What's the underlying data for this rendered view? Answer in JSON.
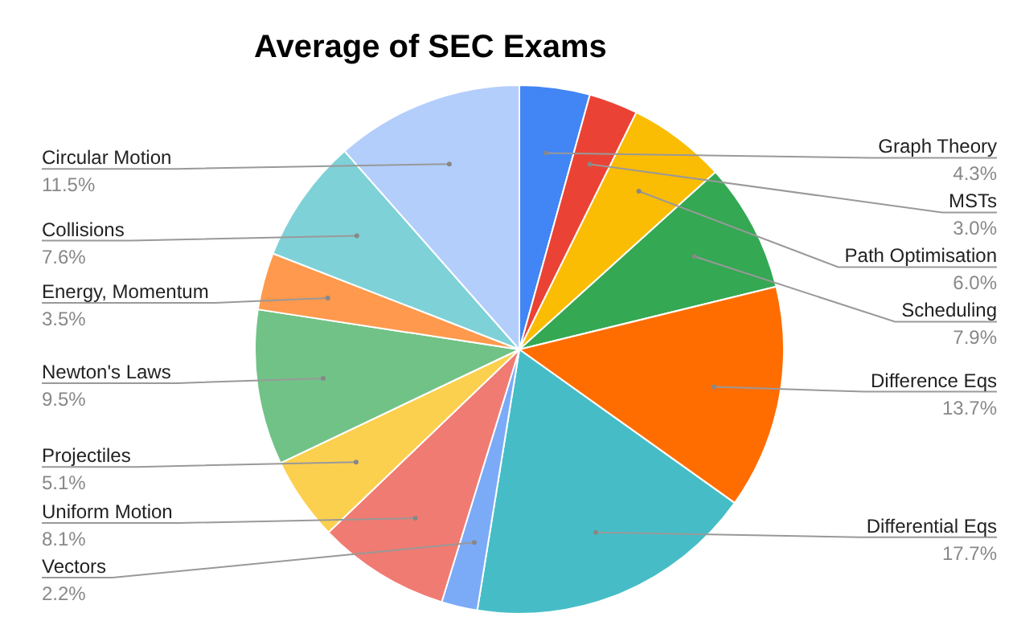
{
  "chart_data": {
    "type": "pie",
    "title": "Average of SEC Exams",
    "categories": [
      "Graph Theory",
      "MSTs",
      "Path Optimisation",
      "Scheduling",
      "Difference Eqs",
      "Differential Eqs",
      "Vectors",
      "Uniform Motion",
      "Projectiles",
      "Newton's Laws",
      "Energy, Momentum",
      "Collisions",
      "Circular Motion"
    ],
    "values": [
      4.3,
      3.0,
      6.0,
      7.9,
      13.7,
      17.7,
      2.2,
      8.1,
      5.1,
      9.5,
      3.5,
      7.6,
      11.5
    ],
    "value_labels": [
      "4.3%",
      "3.0%",
      "6.0%",
      "7.9%",
      "13.7%",
      "17.7%",
      "2.2%",
      "8.1%",
      "5.1%",
      "9.5%",
      "3.5%",
      "7.6%",
      "11.5%"
    ],
    "colors": [
      "#4285f4",
      "#ea4335",
      "#fbbc04",
      "#34a853",
      "#ff6d01",
      "#46bdc6",
      "#7baaf7",
      "#f07b72",
      "#fcd04f",
      "#71c287",
      "#ff994d",
      "#7ed1d7",
      "#b3cefb"
    ],
    "legend": false
  }
}
